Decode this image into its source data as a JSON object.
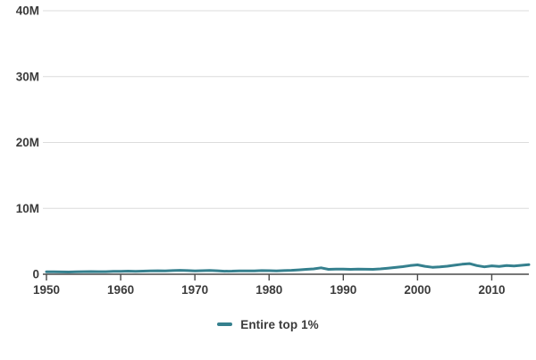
{
  "colors": {
    "line": "#35808E",
    "grid": "#DCDCDC",
    "axis": "#4A4A4A",
    "text": "#3B3B3B",
    "background": "#FFFFFF"
  },
  "legend": {
    "label": "Entire top 1%"
  },
  "chart_data": {
    "type": "line",
    "title": "",
    "xlabel": "",
    "ylabel": "",
    "y_unit": "millions",
    "xlim": [
      1950,
      2015
    ],
    "ylim_millions": [
      0,
      40
    ],
    "grid": "horizontal-only",
    "legend_position": "bottom-center",
    "x_ticks": [
      1950,
      1960,
      1970,
      1980,
      1990,
      2000,
      2010
    ],
    "y_ticks": [
      {
        "value": 0,
        "label": "0"
      },
      {
        "value": 10,
        "label": "10M"
      },
      {
        "value": 20,
        "label": "20M"
      },
      {
        "value": 30,
        "label": "30M"
      },
      {
        "value": 40,
        "label": "40M"
      }
    ],
    "x": [
      1950,
      1951,
      1952,
      1953,
      1954,
      1955,
      1956,
      1957,
      1958,
      1959,
      1960,
      1961,
      1962,
      1963,
      1964,
      1965,
      1966,
      1967,
      1968,
      1969,
      1970,
      1971,
      1972,
      1973,
      1974,
      1975,
      1976,
      1977,
      1978,
      1979,
      1980,
      1981,
      1982,
      1983,
      1984,
      1985,
      1986,
      1987,
      1988,
      1989,
      1990,
      1991,
      1992,
      1993,
      1994,
      1995,
      1996,
      1997,
      1998,
      1999,
      2000,
      2001,
      2002,
      2003,
      2004,
      2005,
      2006,
      2007,
      2008,
      2009,
      2010,
      2011,
      2012,
      2013,
      2014,
      2015
    ],
    "series": [
      {
        "name": "Entire top 1%",
        "color": "#35808E",
        "values_millions": [
          0.38,
          0.36,
          0.35,
          0.34,
          0.36,
          0.4,
          0.41,
          0.39,
          0.4,
          0.44,
          0.45,
          0.47,
          0.45,
          0.47,
          0.5,
          0.53,
          0.52,
          0.56,
          0.6,
          0.56,
          0.52,
          0.54,
          0.57,
          0.53,
          0.46,
          0.48,
          0.51,
          0.5,
          0.52,
          0.55,
          0.54,
          0.52,
          0.55,
          0.6,
          0.66,
          0.74,
          0.82,
          0.97,
          0.74,
          0.79,
          0.78,
          0.75,
          0.78,
          0.76,
          0.74,
          0.82,
          0.92,
          1.03,
          1.15,
          1.32,
          1.42,
          1.21,
          1.06,
          1.11,
          1.22,
          1.37,
          1.52,
          1.62,
          1.32,
          1.12,
          1.27,
          1.18,
          1.31,
          1.26,
          1.36,
          1.45
        ]
      }
    ]
  }
}
